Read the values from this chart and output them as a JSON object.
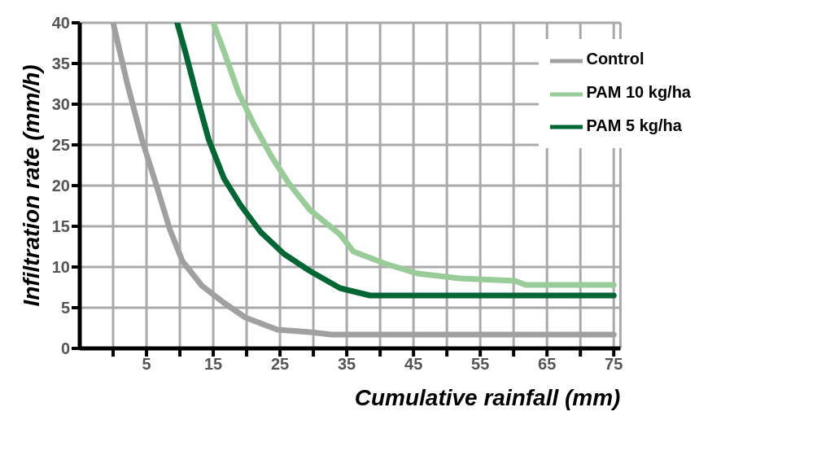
{
  "chart_data": {
    "type": "line",
    "xlabel": "Cumulative rainfall (mm)",
    "ylabel": "Infiltration rate (mm/h)",
    "xlim": [
      -5,
      76
    ],
    "xticks": [
      {
        "value": 0,
        "label": null
      },
      5,
      {
        "value": 10,
        "label": null
      },
      15,
      {
        "value": 20,
        "label": null
      },
      25,
      {
        "value": 30,
        "label": null
      },
      35,
      {
        "value": 40,
        "label": null
      },
      45,
      {
        "value": 50,
        "label": null
      },
      55,
      {
        "value": 60,
        "label": null
      },
      65,
      {
        "value": 70,
        "label": null
      },
      75
    ],
    "ylim": [
      0,
      40
    ],
    "yticks": [
      0,
      5,
      10,
      15,
      20,
      25,
      30,
      35,
      40
    ],
    "grid": true,
    "legend": "top right",
    "marker": "none",
    "line_style": "solid",
    "series": [
      {
        "name": "Control",
        "color": "#a0a0a0",
        "x": [
          0,
          2.1,
          4.3,
          6.5,
          8.5,
          10.4,
          13.3,
          16.6,
          19.8,
          24.6,
          29.5,
          32.7,
          75
        ],
        "values": [
          40,
          32.6,
          25.7,
          20,
          14.6,
          10.7,
          7.7,
          5.6,
          3.8,
          2.3,
          2,
          1.7,
          1.7
        ]
      },
      {
        "name": "PAM 5 kg/ha",
        "color": "#006633",
        "x": [
          9.6,
          10.8,
          12.7,
          14.3,
          16.6,
          19.1,
          22.1,
          25.6,
          29.5,
          34,
          38.5,
          75
        ],
        "values": [
          40,
          36.5,
          30.5,
          25.7,
          20.9,
          17.6,
          14.3,
          11.6,
          9.5,
          7.4,
          6.5,
          6.5
        ]
      },
      {
        "name": "PAM 10 kg/ha",
        "color": "#99cc99",
        "x": [
          15,
          16.6,
          18.8,
          21.1,
          23.7,
          26.3,
          29.5,
          34,
          36,
          40.8,
          45.6,
          52,
          60.2,
          61.8,
          75
        ],
        "values": [
          40,
          36.5,
          31.4,
          27.5,
          23.6,
          20.3,
          17,
          14,
          11.9,
          10.4,
          9.2,
          8.6,
          8.3,
          7.8,
          7.8
        ]
      }
    ]
  }
}
